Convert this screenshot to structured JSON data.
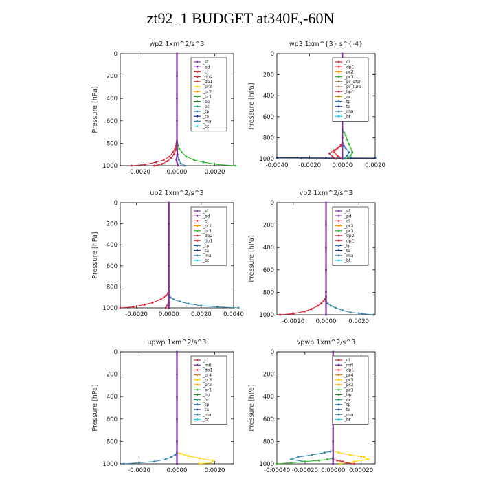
{
  "page_title": "zt92_1  BUDGET at340E,-60N",
  "series_colors": {
    "_sf": "#8a3fb0",
    "_pd": "#7a2a9a",
    "_cl": "#cc3344",
    "_mfl": "#7a2a9a",
    "_dp2": "#e02030",
    "_dp1": "#ee3030",
    "_pr3": "#ffd000",
    "_pr2": "#ff9a00",
    "_pr1": "#33bb33",
    "_pr4": "#ff7a00",
    "_pr_dfsn": "#9a7a40",
    "_pr_turb": "#aa8855",
    "_bp": "#2a8a2a",
    "_bp1": "#cc3344",
    "_ac": "#cc8800",
    "_oc": "#22aa66",
    "_tp": "#1f6fb8",
    "_ta": "#1a3a8a",
    "_ma": "#3a88a8",
    "_bt": "#22ccee"
  },
  "chart_data": [
    {
      "type": "line",
      "title": "wp2   1xm^2/s^3",
      "ylabel": "Pressure [hPa]",
      "xlim": [
        -0.003,
        0.003
      ],
      "ylim": [
        1000,
        0
      ],
      "xticks": [
        -0.002,
        0.0,
        0.002
      ],
      "xtick_labels": [
        "-0.0020",
        "0.0000",
        "0.0020"
      ],
      "yticks": [
        0,
        200,
        400,
        600,
        800,
        1000
      ],
      "ytick_labels": [
        "0",
        "200",
        "400",
        "600",
        "800",
        "1000"
      ],
      "legend": [
        "_sf",
        "_pd",
        "_cl",
        "_dp2",
        "_dp1",
        "_pr3",
        "_pr2",
        "_pr1",
        "_bp",
        "_oc",
        "_tp",
        "_ta",
        "_ma",
        "_bt"
      ],
      "legend_position": "top-right",
      "series": [
        {
          "name": "_cl",
          "y": [
            1000,
            990,
            970,
            950,
            920,
            880,
            850,
            820,
            800,
            780
          ],
          "x": [
            -0.0024,
            -0.0017,
            -0.0011,
            -0.0007,
            -0.0004,
            -0.0002,
            -0.0001,
            -5e-05,
            -2e-05,
            0.0
          ]
        },
        {
          "name": "_dp2",
          "y": [
            1000,
            985,
            960,
            930,
            900,
            860,
            820,
            790
          ],
          "x": [
            -0.0012,
            -0.0008,
            -0.0005,
            -0.0003,
            -0.00015,
            -6e-05,
            -2e-05,
            0.0
          ]
        },
        {
          "name": "_pr1",
          "y": [
            1000,
            990,
            970,
            950,
            920,
            880,
            850,
            820,
            800,
            780
          ],
          "x": [
            0.0031,
            0.0022,
            0.0014,
            0.0009,
            0.0005,
            0.00025,
            0.00012,
            5e-05,
            2e-05,
            0.0
          ]
        },
        {
          "name": "_ma",
          "y": [
            1000,
            980,
            950,
            900,
            850
          ],
          "x": [
            0.0004,
            0.0002,
            0.0001,
            3e-05,
            0.0
          ]
        },
        {
          "name": "_pd",
          "y": [
            0,
            200,
            400,
            600,
            800,
            900,
            950,
            1000
          ],
          "x": [
            0.0,
            0.0,
            0.0,
            0.0,
            0.0,
            2e-05,
            -3e-05,
            5e-05
          ]
        }
      ]
    },
    {
      "type": "line",
      "title": "wp3   1xm^{3} s^{-4}",
      "ylabel": "Pressure [hPa]",
      "xlim": [
        -0.004,
        0.002
      ],
      "ylim": [
        1000,
        0
      ],
      "xticks": [
        -0.004,
        -0.002,
        0.0,
        0.002
      ],
      "xtick_labels": [
        "-0.0040",
        "-0.0020",
        "0.0000",
        "0.0020"
      ],
      "yticks": [
        0,
        200,
        400,
        600,
        800,
        1000
      ],
      "ytick_labels": [
        "0",
        "200",
        "400",
        "600",
        "800",
        "1000"
      ],
      "legend": [
        "_cl",
        "_dp1",
        "_pr2",
        "_pr1",
        "_pr_dfsn",
        "_pr_turb",
        "_bp1",
        "_ac",
        "_tp",
        "_ta",
        "_ma",
        "_bt"
      ],
      "legend_position": "top-right",
      "series": [
        {
          "name": "_ta",
          "y": [
            990,
            991,
            992,
            993,
            994
          ],
          "x": [
            -0.004,
            -0.0025,
            -0.001,
            0.0005,
            0.002
          ]
        },
        {
          "name": "_cl",
          "y": [
            1000,
            980,
            950,
            920,
            900,
            880,
            860,
            850
          ],
          "x": [
            -0.0004,
            -0.0006,
            -0.0008,
            -0.0005,
            -0.0003,
            -0.0001,
            -3e-05,
            0.0
          ]
        },
        {
          "name": "_dp1",
          "y": [
            1000,
            970,
            940,
            900,
            870,
            850
          ],
          "x": [
            0.0,
            -0.0003,
            -0.0005,
            -0.0003,
            -0.0001,
            0.0
          ]
        },
        {
          "name": "_pr1",
          "y": [
            1000,
            970,
            940,
            900,
            860,
            820,
            780,
            750,
            720
          ],
          "x": [
            0.0002,
            0.0005,
            0.0006,
            0.0005,
            0.0004,
            0.0003,
            0.0002,
            0.0001,
            0.0
          ]
        },
        {
          "name": "_tp",
          "y": [
            1000,
            970,
            940,
            900,
            880,
            860
          ],
          "x": [
            0.0001,
            0.0003,
            0.0004,
            0.0002,
            0.0001,
            0.0
          ]
        },
        {
          "name": "_pd",
          "y": [
            0,
            200,
            400,
            600,
            800,
            1000
          ],
          "x": [
            0.0,
            0.0,
            0.0,
            0.0,
            0.0,
            0.0
          ]
        }
      ]
    },
    {
      "type": "line",
      "title": "up2   1xm^2/s^3",
      "ylabel": "Pressure [hPa]",
      "xlim": [
        -0.003,
        0.004
      ],
      "ylim": [
        1000,
        0
      ],
      "xticks": [
        -0.002,
        0.0,
        0.002,
        0.004
      ],
      "xtick_labels": [
        "-0.0020",
        "0.0000",
        "0.0020",
        "0.0040"
      ],
      "yticks": [
        0,
        200,
        400,
        600,
        800,
        1000
      ],
      "ytick_labels": [
        "0",
        "200",
        "400",
        "600",
        "800",
        "1000"
      ],
      "legend": [
        "_sf",
        "_pd",
        "_cl",
        "_pr2",
        "_pr1",
        "_dp2",
        "_dp1",
        "_tp",
        "_ta",
        "_ma",
        "_bt"
      ],
      "legend_position": "top-right",
      "series": [
        {
          "name": "_dp2",
          "y": [
            1000,
            990,
            970,
            950,
            920,
            900,
            880,
            860,
            840
          ],
          "x": [
            -0.003,
            -0.0022,
            -0.0015,
            -0.001,
            -0.0005,
            -0.0003,
            -0.00015,
            -5e-05,
            0.0
          ]
        },
        {
          "name": "_ma",
          "y": [
            1000,
            990,
            980,
            960,
            940,
            920,
            900,
            880
          ],
          "x": [
            0.0043,
            0.003,
            0.002,
            0.0012,
            0.0007,
            0.0003,
            0.0001,
            0.0
          ]
        },
        {
          "name": "_cl",
          "y": [
            1000,
            980,
            960,
            950
          ],
          "x": [
            -0.0002,
            -0.0001,
            -3e-05,
            0.0
          ]
        },
        {
          "name": "_pd",
          "y": [
            0,
            200,
            400,
            600,
            800,
            1000
          ],
          "x": [
            0.0,
            0.0,
            0.0,
            0.0,
            0.0,
            0.0
          ]
        }
      ]
    },
    {
      "type": "line",
      "title": "vp2   1xm^2/s^3",
      "ylabel": "Pressure [hPa]",
      "xlim": [
        -0.003,
        0.003
      ],
      "ylim": [
        1000,
        0
      ],
      "xticks": [
        -0.002,
        0.0,
        0.002
      ],
      "xtick_labels": [
        "-0.0020",
        "0.0000",
        "0.0020"
      ],
      "yticks": [
        0,
        200,
        400,
        600,
        800,
        1000
      ],
      "ytick_labels": [
        "0",
        "200",
        "400",
        "600",
        "800",
        "1000"
      ],
      "legend": [
        "_sf",
        "_pd",
        "_cl",
        "_pr2",
        "_pr1",
        "_dp2",
        "_dp1",
        "_tp",
        "_ta",
        "_ma",
        "_bt"
      ],
      "legend_position": "top-right",
      "series": [
        {
          "name": "_dp2",
          "y": [
            1000,
            990,
            970,
            950,
            920,
            900,
            880,
            860,
            840
          ],
          "x": [
            -0.0028,
            -0.002,
            -0.0013,
            -0.0009,
            -0.0005,
            -0.0003,
            -0.00015,
            -5e-05,
            0.0
          ]
        },
        {
          "name": "_ma",
          "y": [
            1000,
            990,
            980,
            960,
            940,
            920,
            900,
            880
          ],
          "x": [
            0.0029,
            0.0022,
            0.0015,
            0.001,
            0.0006,
            0.0003,
            0.0001,
            0.0
          ]
        },
        {
          "name": "_pd",
          "y": [
            0,
            200,
            400,
            600,
            800,
            1000
          ],
          "x": [
            0.0,
            0.0,
            0.0,
            0.0,
            0.0,
            0.0
          ]
        }
      ]
    },
    {
      "type": "line",
      "title": "upwp   1xm^2/s^3",
      "ylabel": "Pressure [hPa]",
      "xlim": [
        -0.003,
        0.003
      ],
      "ylim": [
        1000,
        0
      ],
      "xticks": [
        -0.002,
        0.0,
        0.002
      ],
      "xtick_labels": [
        "-0.0020",
        "0.0000",
        "0.0020"
      ],
      "yticks": [
        0,
        200,
        400,
        600,
        800,
        1000
      ],
      "ytick_labels": [
        "0",
        "200",
        "400",
        "600",
        "800",
        "1000"
      ],
      "legend": [
        "_cl",
        "_mfl",
        "_dp1",
        "_pr4",
        "_pr3",
        "_pr2",
        "_pr1",
        "_bp",
        "_oc",
        "_tp",
        "_ta",
        "_ma",
        "_bt"
      ],
      "legend_position": "top-right",
      "series": [
        {
          "name": "_pr3",
          "y": [
            1000,
            990,
            970,
            950,
            930,
            910,
            900
          ],
          "x": [
            0.0012,
            0.0018,
            0.0019,
            0.0012,
            0.0006,
            0.0002,
            0.0
          ]
        },
        {
          "name": "_ma",
          "y": [
            1000,
            990,
            980,
            960,
            940,
            920,
            900
          ],
          "x": [
            -0.0028,
            -0.002,
            -0.0012,
            -0.0006,
            -0.0003,
            -0.0001,
            0.0
          ]
        },
        {
          "name": "_pd",
          "y": [
            0,
            200,
            400,
            600,
            800,
            1000
          ],
          "x": [
            0.0,
            0.0,
            0.0,
            0.0,
            0.0,
            0.0
          ]
        }
      ]
    },
    {
      "type": "line",
      "title": "vpwp   1xm^2/s^3",
      "ylabel": "Pressure [hPa]",
      "xlim": [
        -0.0004,
        0.0003
      ],
      "ylim": [
        1000,
        0
      ],
      "xticks": [
        -0.0004,
        -0.0002,
        0.0,
        0.0002
      ],
      "xtick_labels": [
        "-0.00040",
        "-0.00020",
        "0.00000",
        "0.00020"
      ],
      "yticks": [
        0,
        200,
        400,
        600,
        800,
        1000
      ],
      "ytick_labels": [
        "0",
        "200",
        "400",
        "600",
        "800",
        "1000"
      ],
      "legend": [
        "_cl",
        "_mfl",
        "_dp1",
        "_pr4",
        "_pr3",
        "_pr2",
        "_pr1",
        "_bp",
        "_oc",
        "_tp",
        "_ta",
        "_ma",
        "_bt"
      ],
      "legend_position": "top-right",
      "series": [
        {
          "name": "_ma",
          "y": [
            980,
            960,
            940,
            920,
            900,
            890,
            880
          ],
          "x": [
            -0.0002,
            -0.0003,
            -0.00025,
            -0.00015,
            -6e-05,
            -2e-05,
            0.0
          ]
        },
        {
          "name": "_pr3",
          "y": [
            1000,
            980,
            960,
            940,
            920,
            900,
            880
          ],
          "x": [
            5e-05,
            0.00015,
            0.00025,
            0.00022,
            0.00012,
            4e-05,
            0.0
          ]
        },
        {
          "name": "_pr1",
          "y": [
            1000,
            990,
            980,
            970,
            960,
            950
          ],
          "x": [
            -0.0004,
            -0.0003,
            -0.0002,
            -0.0001,
            -4e-05,
            0.0
          ]
        },
        {
          "name": "_dp1",
          "y": [
            1000,
            990,
            980,
            970,
            960
          ],
          "x": [
            0.00015,
            0.0001,
            6e-05,
            3e-05,
            0.0
          ]
        },
        {
          "name": "_cl",
          "y": [
            990,
            980,
            970,
            960
          ],
          "x": [
            0.0001,
            7e-05,
            3e-05,
            0.0
          ]
        },
        {
          "name": "_pd",
          "y": [
            0,
            200,
            400,
            600,
            800,
            1000
          ],
          "x": [
            0.0,
            0.0,
            0.0,
            0.0,
            0.0,
            0.0
          ]
        }
      ]
    }
  ]
}
